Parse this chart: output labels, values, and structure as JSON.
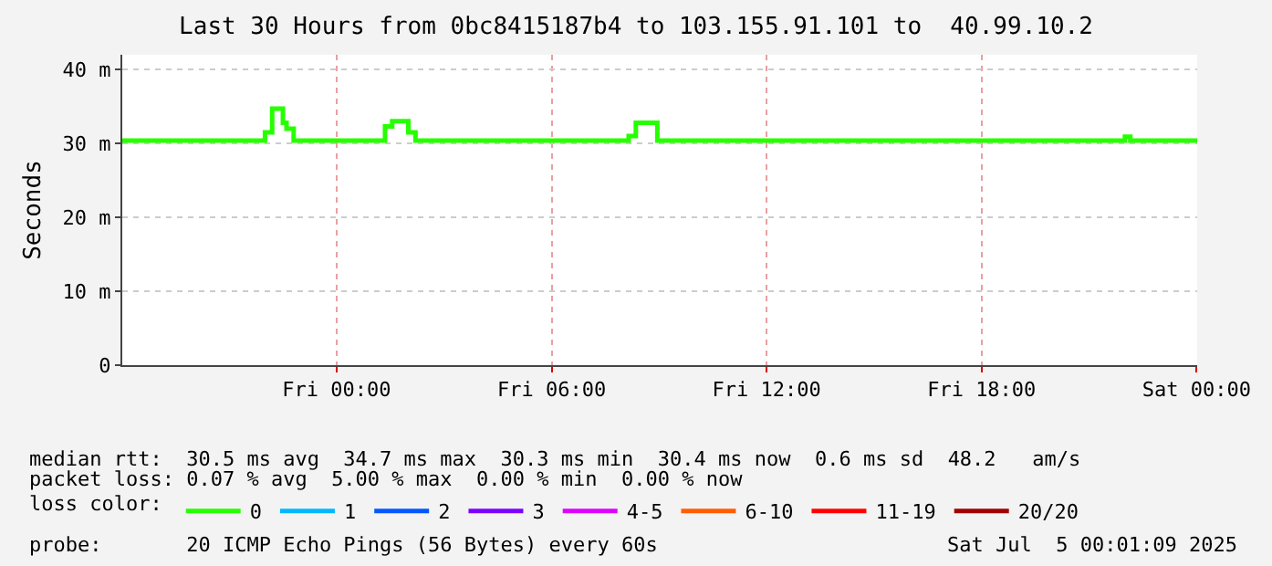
{
  "chart_data": {
    "type": "step",
    "title": "Last 30 Hours from 0bc8415187b4 to 103.155.91.101 to  40.99.10.2",
    "ylabel": "Seconds",
    "legend_title": "loss color:",
    "x": [
      "2025-07-03T18:01",
      "2025-07-03T22:00",
      "2025-07-03T22:12",
      "2025-07-03T22:30",
      "2025-07-03T22:36",
      "2025-07-03T22:48",
      "2025-07-04T01:21",
      "2025-07-04T01:33",
      "2025-07-04T02:00",
      "2025-07-04T02:12",
      "2025-07-04T08:09",
      "2025-07-04T08:21",
      "2025-07-04T08:57",
      "2025-07-04T22:00",
      "2025-07-04T22:09",
      "2025-07-05T00:01"
    ],
    "series": [
      {
        "name": "0",
        "color": "#26ff00",
        "values": [
          30.4,
          31.5,
          34.7,
          32.8,
          32.0,
          30.4,
          32.3,
          33.0,
          31.5,
          30.4,
          31.0,
          32.8,
          30.4,
          30.9,
          30.4,
          30.4
        ]
      },
      {
        "name": "1",
        "color": "#00b8ff",
        "values": [
          null,
          null,
          null,
          null,
          null,
          null,
          null,
          null,
          null,
          null,
          null,
          null,
          null,
          null,
          null,
          null
        ]
      },
      {
        "name": "2",
        "color": "#0059ff",
        "values": [
          null,
          null,
          null,
          null,
          null,
          null,
          null,
          null,
          null,
          null,
          null,
          null,
          null,
          null,
          null,
          null
        ]
      },
      {
        "name": "3",
        "color": "#7e00ff",
        "values": [
          null,
          null,
          null,
          null,
          null,
          null,
          null,
          null,
          null,
          null,
          null,
          null,
          null,
          null,
          null,
          null
        ]
      },
      {
        "name": "4-5",
        "color": "#dd00ff",
        "values": [
          null,
          null,
          null,
          null,
          null,
          null,
          null,
          null,
          null,
          null,
          null,
          null,
          null,
          null,
          null,
          null
        ]
      },
      {
        "name": "6-10",
        "color": "#ff5e00",
        "values": [
          null,
          null,
          null,
          null,
          null,
          null,
          null,
          null,
          null,
          null,
          null,
          null,
          null,
          null,
          null,
          null
        ]
      },
      {
        "name": "11-19",
        "color": "#ff0000",
        "values": [
          null,
          null,
          null,
          null,
          null,
          null,
          null,
          null,
          null,
          null,
          null,
          null,
          null,
          null,
          null,
          null
        ]
      },
      {
        "name": "20/20",
        "color": "#a10000",
        "values": [
          null,
          null,
          null,
          null,
          null,
          null,
          null,
          null,
          null,
          null,
          null,
          null,
          null,
          null,
          null,
          null
        ]
      }
    ],
    "xlim": [
      "2025-07-03T18:01",
      "2025-07-05T00:01"
    ],
    "xticks": [
      {
        "value": "2025-07-04T00:00",
        "label": "Fri 00:00"
      },
      {
        "value": "2025-07-04T06:00",
        "label": "Fri 06:00"
      },
      {
        "value": "2025-07-04T12:00",
        "label": "Fri 12:00"
      },
      {
        "value": "2025-07-04T18:00",
        "label": "Fri 18:00"
      },
      {
        "value": "2025-07-05T00:00",
        "label": "Sat 00:00"
      }
    ],
    "ylim": [
      0,
      42
    ],
    "yticks": [
      {
        "value": 0,
        "label": "0"
      },
      {
        "value": 10,
        "label": "10 m"
      },
      {
        "value": 20,
        "label": "20 m"
      },
      {
        "value": 30,
        "label": "30 m"
      },
      {
        "value": 40,
        "label": "40 m"
      }
    ],
    "grid": true,
    "legend": "bottom",
    "annotations": [
      "median rtt:  30.5 ms avg  34.7 ms max  30.3 ms min  30.4 ms now  0.6 ms sd  48.2   am/s",
      "packet loss: 0.07 % avg  5.00 % max  0.00 % min  0.00 % now",
      "probe:       20 ICMP Echo Pings (56 Bytes) every 60s",
      "Sat Jul  5 00:01:09 2025"
    ]
  }
}
